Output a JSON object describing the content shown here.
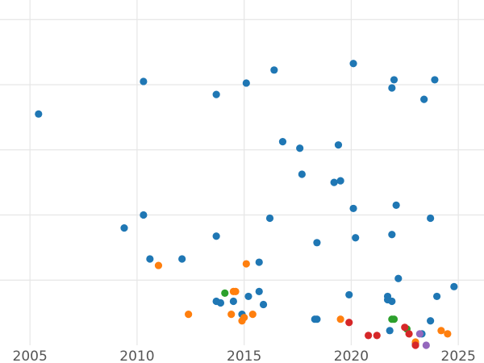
{
  "chart_data": {
    "type": "scatter",
    "title": "",
    "xlabel": "",
    "ylabel": "",
    "xlim": [
      2003.6,
      2026.2
    ],
    "ylim": [
      0,
      106
    ],
    "grid": true,
    "legend": "none",
    "x_ticks": [
      2005,
      2010,
      2015,
      2020,
      2025
    ],
    "x_tick_labels": [
      "2005",
      "2010",
      "2015",
      "2020",
      "2025"
    ],
    "y_ticks": [
      20,
      40,
      60,
      80,
      100
    ],
    "series": [
      {
        "color": "#1f77b4",
        "points": [
          [
            2005.4,
            71
          ],
          [
            2010.3,
            81
          ],
          [
            2013.7,
            77
          ],
          [
            2015.1,
            80.5
          ],
          [
            2016.4,
            84.5
          ],
          [
            2020.1,
            86.5
          ],
          [
            2022.0,
            81.5
          ],
          [
            2021.9,
            79
          ],
          [
            2023.4,
            75.5
          ],
          [
            2023.9,
            81.5
          ],
          [
            2016.8,
            62.5
          ],
          [
            2017.6,
            60.5
          ],
          [
            2019.4,
            61.5
          ],
          [
            2017.7,
            52.5
          ],
          [
            2019.2,
            50
          ],
          [
            2019.5,
            50.5
          ],
          [
            2020.1,
            42
          ],
          [
            2022.1,
            43
          ],
          [
            2023.7,
            39
          ],
          [
            2016.2,
            39
          ],
          [
            2010.3,
            40
          ],
          [
            2009.4,
            36
          ],
          [
            2013.7,
            33.5
          ],
          [
            2018.4,
            31.5
          ],
          [
            2020.2,
            33
          ],
          [
            2021.9,
            34
          ],
          [
            2010.6,
            26.5
          ],
          [
            2012.1,
            26.5
          ],
          [
            2015.7,
            25.5
          ],
          [
            2022.2,
            20.5
          ],
          [
            2024.8,
            18
          ],
          [
            2015.7,
            16.5
          ],
          [
            2014.5,
            13.5
          ],
          [
            2013.7,
            13.5
          ],
          [
            2013.9,
            13
          ],
          [
            2015.2,
            15
          ],
          [
            2015.9,
            12.5
          ],
          [
            2019.9,
            15.5
          ],
          [
            2021.7,
            15
          ],
          [
            2021.7,
            14
          ],
          [
            2021.9,
            13.5
          ],
          [
            2024.0,
            15
          ],
          [
            2014.9,
            9.5
          ],
          [
            2018.3,
            8
          ],
          [
            2018.4,
            8
          ],
          [
            2023.7,
            7.5
          ],
          [
            2021.8,
            4.5
          ],
          [
            2023.3,
            3.5
          ],
          [
            2023.0,
            0.5
          ]
        ]
      },
      {
        "color": "#ff7f0e",
        "points": [
          [
            2011.0,
            24.5
          ],
          [
            2015.1,
            25
          ],
          [
            2014.5,
            16.5
          ],
          [
            2014.6,
            16.5
          ],
          [
            2012.4,
            9.5
          ],
          [
            2014.4,
            9.5
          ],
          [
            2015.4,
            9.5
          ],
          [
            2015.0,
            8.5
          ],
          [
            2014.9,
            7.5
          ],
          [
            2019.5,
            8
          ],
          [
            2024.2,
            4.5
          ],
          [
            2024.5,
            3.5
          ],
          [
            2023.0,
            1
          ]
        ]
      },
      {
        "color": "#2ca02c",
        "points": [
          [
            2014.1,
            16
          ],
          [
            2021.9,
            8
          ],
          [
            2022.0,
            8
          ],
          [
            2022.6,
            5
          ]
        ]
      },
      {
        "color": "#d62728",
        "points": [
          [
            2019.9,
            7
          ],
          [
            2020.8,
            3
          ],
          [
            2021.2,
            3
          ],
          [
            2022.5,
            5.5
          ],
          [
            2022.7,
            3.5
          ],
          [
            2023.0,
            0
          ]
        ]
      },
      {
        "color": "#9467bd",
        "points": [
          [
            2023.2,
            3.5
          ],
          [
            2023.5,
            0
          ]
        ]
      }
    ]
  }
}
